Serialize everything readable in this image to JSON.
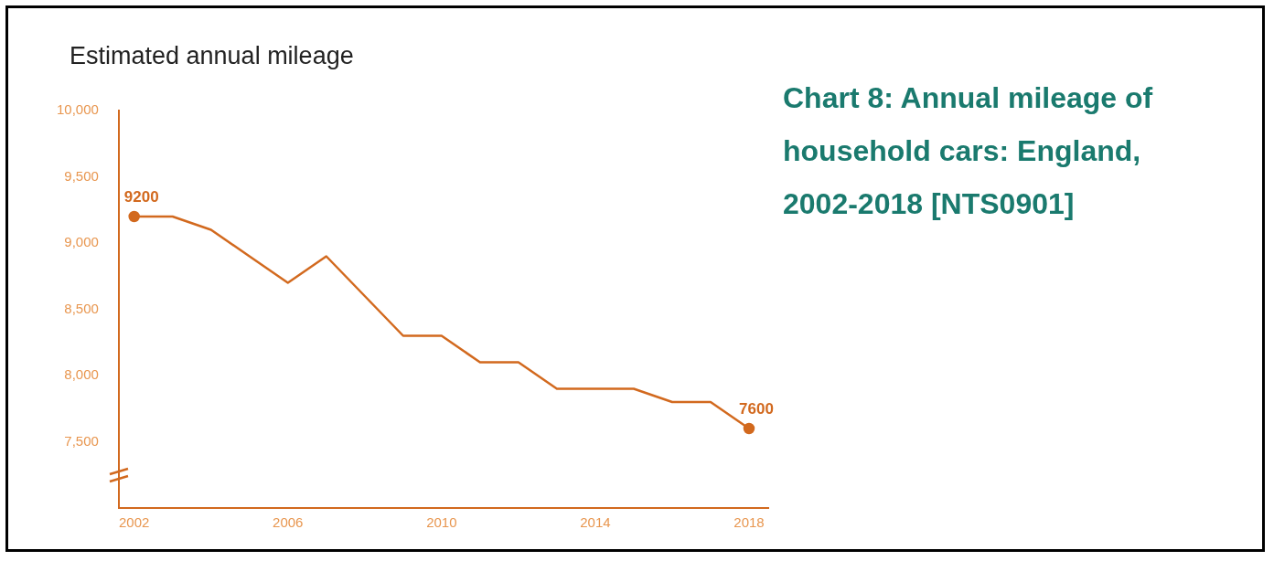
{
  "chart_data": {
    "type": "line",
    "title": "Chart 8: Annual mileage of household cars: England, 2002-2018 [NTS0901]",
    "ylabel": "Estimated annual mileage",
    "x": [
      2002,
      2003,
      2004,
      2005,
      2006,
      2007,
      2008,
      2009,
      2010,
      2011,
      2012,
      2013,
      2014,
      2015,
      2016,
      2017,
      2018
    ],
    "series": [
      {
        "color": "#d2691e",
        "values": [
          9200,
          9200,
          9100,
          8900,
          8700,
          8900,
          8600,
          8300,
          8300,
          8100,
          8100,
          7900,
          7900,
          7900,
          7800,
          7800,
          7600
        ],
        "value_labels": [
          "9200",
          null,
          null,
          null,
          null,
          null,
          null,
          null,
          null,
          null,
          null,
          null,
          null,
          null,
          null,
          null,
          "7600"
        ]
      }
    ],
    "xlim": [
      2001.6,
      2018.5
    ],
    "xticks": [
      2002,
      2006,
      2010,
      2014,
      2018
    ],
    "ylim": [
      7000,
      10000
    ],
    "yticks": [
      {
        "value": 7500,
        "label": "7,500"
      },
      {
        "value": 8000,
        "label": "8,000"
      },
      {
        "value": 8500,
        "label": "8,500"
      },
      {
        "value": 9000,
        "label": "9,000"
      },
      {
        "value": 9500,
        "label": "9,500"
      },
      {
        "value": 10000,
        "label": "10,000"
      }
    ],
    "grid": false,
    "legend": false,
    "line_style": "solid"
  }
}
